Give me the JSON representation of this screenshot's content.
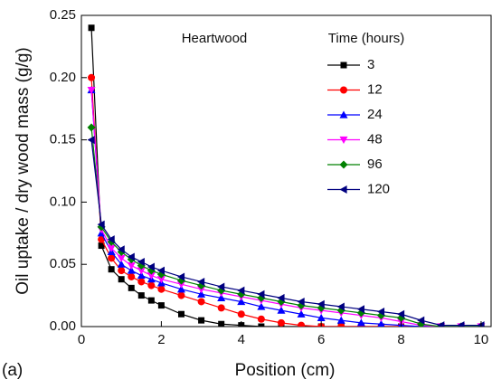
{
  "chart_data": {
    "type": "line",
    "annotation": "Heartwood",
    "panel_label": "(a)",
    "x_label": "Position (cm)",
    "y_label": "Oil uptake / dry wood mass (g/g)",
    "legend_title": "Time (hours)",
    "legend": "upper right",
    "x": [
      0.25,
      0.5,
      0.75,
      1,
      1.25,
      1.5,
      1.75,
      2,
      2.5,
      3,
      3.5,
      4,
      4.5,
      5,
      5.5,
      6,
      6.5,
      7,
      7.5,
      8,
      8.5,
      9,
      9.5,
      10
    ],
    "series": [
      {
        "name": "3",
        "color": "#000000",
        "marker": "square",
        "values": [
          0.24,
          0.065,
          0.046,
          0.038,
          0.031,
          0.025,
          0.021,
          0.017,
          0.01,
          0.005,
          0.002,
          0.001,
          0,
          0,
          0,
          0,
          0,
          0,
          0,
          0,
          0,
          0,
          0,
          0
        ]
      },
      {
        "name": "12",
        "color": "#ff0000",
        "marker": "circle",
        "values": [
          0.2,
          0.07,
          0.055,
          0.045,
          0.04,
          0.036,
          0.033,
          0.03,
          0.025,
          0.02,
          0.015,
          0.01,
          0.006,
          0.003,
          0.001,
          0,
          0,
          0,
          0,
          0,
          0,
          0,
          0,
          0
        ]
      },
      {
        "name": "24",
        "color": "#0000ff",
        "marker": "triangle-up",
        "values": [
          0.19,
          0.075,
          0.06,
          0.05,
          0.045,
          0.041,
          0.038,
          0.035,
          0.03,
          0.026,
          0.023,
          0.02,
          0.016,
          0.013,
          0.01,
          0.007,
          0.005,
          0.003,
          0.002,
          0.001,
          0,
          0,
          0,
          0
        ]
      },
      {
        "name": "48",
        "color": "#ff00ff",
        "marker": "triangle-down",
        "values": [
          0.19,
          0.078,
          0.063,
          0.055,
          0.049,
          0.045,
          0.041,
          0.038,
          0.034,
          0.03,
          0.027,
          0.024,
          0.021,
          0.018,
          0.015,
          0.013,
          0.011,
          0.009,
          0.007,
          0.004,
          0.001,
          0,
          0,
          0
        ]
      },
      {
        "name": "96",
        "color": "#008000",
        "marker": "diamond",
        "values": [
          0.16,
          0.08,
          0.068,
          0.06,
          0.054,
          0.049,
          0.045,
          0.042,
          0.037,
          0.033,
          0.029,
          0.026,
          0.023,
          0.02,
          0.017,
          0.015,
          0.013,
          0.011,
          0.009,
          0.007,
          0.002,
          0,
          0,
          0
        ]
      },
      {
        "name": "120",
        "color": "#000080",
        "marker": "triangle-left",
        "values": [
          0.15,
          0.082,
          0.07,
          0.062,
          0.056,
          0.052,
          0.048,
          0.045,
          0.04,
          0.036,
          0.032,
          0.029,
          0.026,
          0.023,
          0.02,
          0.018,
          0.016,
          0.014,
          0.012,
          0.01,
          0.005,
          0.001,
          0.001,
          0.001
        ]
      }
    ],
    "xlim": [
      0,
      10.25
    ],
    "xticks": [
      0,
      2,
      4,
      6,
      8,
      10
    ],
    "ylim": [
      0,
      0.25
    ],
    "yticks": [
      {
        "value": 0,
        "label": "0.00"
      },
      {
        "value": 0.05,
        "label": "0.05"
      },
      {
        "value": 0.1,
        "label": "0.10"
      },
      {
        "value": 0.15,
        "label": "0.15"
      },
      {
        "value": 0.2,
        "label": "0.20"
      },
      {
        "value": 0.25,
        "label": "0.25"
      }
    ]
  }
}
